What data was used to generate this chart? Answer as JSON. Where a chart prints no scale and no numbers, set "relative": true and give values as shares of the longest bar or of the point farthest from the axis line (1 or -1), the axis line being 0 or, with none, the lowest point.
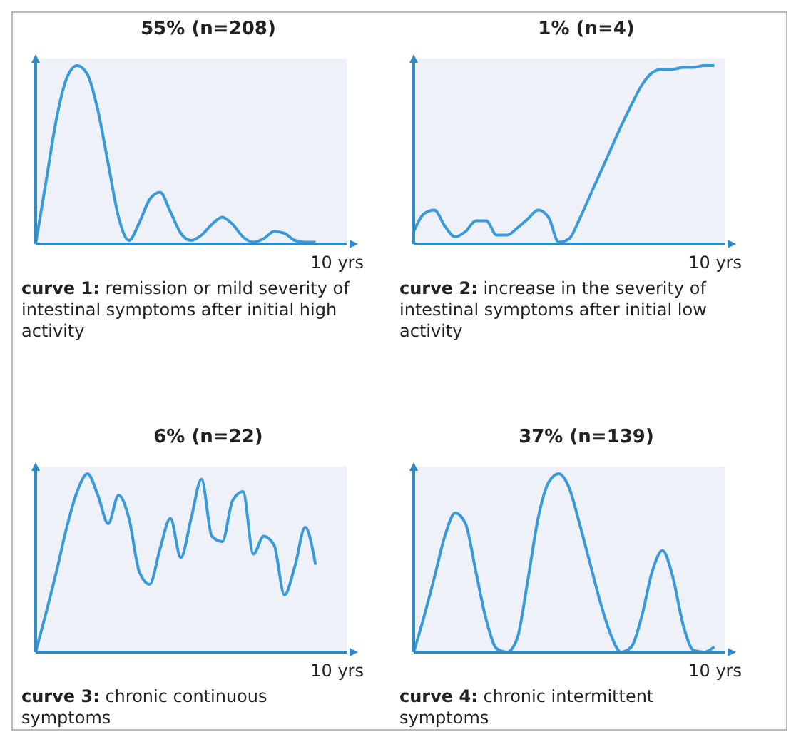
{
  "chart_data": [
    {
      "type": "line",
      "title": "55% (n=208)",
      "xlabel": "10 yrs",
      "relative": true,
      "grid": false,
      "marker": "none",
      "color": "#3a9ad9",
      "categories": [
        null,
        null,
        null,
        null,
        null,
        null,
        null,
        null,
        null,
        null,
        null,
        null,
        null,
        null,
        null,
        null,
        null,
        null,
        null,
        null,
        null,
        null,
        null,
        null,
        null,
        null,
        null,
        null,
        null,
        null,
        null
      ],
      "values": [
        0,
        0.35,
        0.7,
        0.93,
        1.0,
        0.95,
        0.75,
        0.45,
        0.15,
        0.02,
        0.12,
        0.25,
        0.29,
        0.18,
        0.06,
        0.02,
        0.05,
        0.11,
        0.15,
        0.11,
        0.04,
        0.01,
        0.03,
        0.07,
        0.06,
        0.02,
        0.01,
        0.01,
        null,
        null,
        null
      ],
      "annotations": [
        "curve 1: remission or mild severity of intestinal symptoms after initial high activity"
      ]
    },
    {
      "type": "line",
      "title": "1% (n=4)",
      "xlabel": "10 yrs",
      "relative": true,
      "grid": false,
      "marker": "none",
      "color": "#3a9ad9",
      "categories": [
        null,
        null,
        null,
        null,
        null,
        null,
        null,
        null,
        null,
        null,
        null,
        null,
        null,
        null,
        null,
        null,
        null,
        null,
        null,
        null,
        null,
        null,
        null,
        null,
        null,
        null,
        null,
        null,
        null,
        null,
        null
      ],
      "values": [
        0.07,
        0.17,
        0.19,
        0.1,
        0.04,
        0.07,
        0.13,
        0.13,
        0.05,
        0.05,
        0.09,
        0.14,
        0.19,
        0.15,
        0.01,
        0.03,
        0.14,
        0.27,
        0.4,
        0.53,
        0.66,
        0.78,
        0.89,
        0.96,
        0.98,
        0.98,
        0.99,
        0.99,
        1.0,
        1.0,
        null
      ],
      "annotations": [
        "curve 2: increase in the severity of intestinal symptoms after initial low activity"
      ]
    },
    {
      "type": "line",
      "title": "6% (n=22)",
      "xlabel": "10 yrs",
      "relative": true,
      "grid": false,
      "marker": "none",
      "color": "#3a9ad9",
      "categories": [
        null,
        null,
        null,
        null,
        null,
        null,
        null,
        null,
        null,
        null,
        null,
        null,
        null,
        null,
        null,
        null,
        null,
        null,
        null,
        null,
        null,
        null,
        null,
        null,
        null,
        null,
        null,
        null,
        null,
        null,
        null
      ],
      "values": [
        0,
        0.22,
        0.45,
        0.7,
        0.9,
        1.0,
        0.88,
        0.72,
        0.88,
        0.75,
        0.45,
        0.38,
        0.58,
        0.75,
        0.53,
        0.75,
        0.97,
        0.65,
        0.62,
        0.85,
        0.9,
        0.55,
        0.65,
        0.6,
        0.32,
        0.48,
        0.7,
        0.49,
        null,
        null,
        null
      ],
      "annotations": [
        "curve 3: chronic continuous symptoms"
      ]
    },
    {
      "type": "line",
      "title": "37% (n=139)",
      "xlabel": "10 yrs",
      "relative": true,
      "grid": false,
      "marker": "none",
      "color": "#3a9ad9",
      "categories": [
        null,
        null,
        null,
        null,
        null,
        null,
        null,
        null,
        null,
        null,
        null,
        null,
        null,
        null,
        null,
        null,
        null,
        null,
        null,
        null,
        null,
        null,
        null,
        null,
        null,
        null,
        null,
        null,
        null,
        null,
        null
      ],
      "values": [
        0,
        0.2,
        0.42,
        0.65,
        0.78,
        0.72,
        0.45,
        0.18,
        0.02,
        0,
        0.08,
        0.4,
        0.75,
        0.95,
        1.0,
        0.92,
        0.72,
        0.5,
        0.28,
        0.1,
        0,
        0.03,
        0.2,
        0.45,
        0.57,
        0.42,
        0.15,
        0.01,
        0,
        0.03,
        null
      ],
      "annotations": [
        "curve 4: chronic intermittent symptoms"
      ]
    }
  ]
}
